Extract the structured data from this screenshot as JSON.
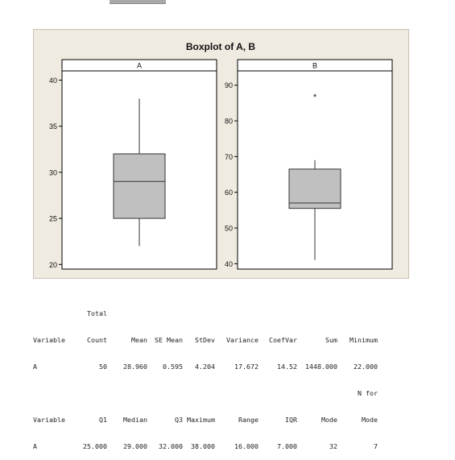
{
  "chart_data": {
    "type": "boxplot",
    "title": "Boxplot of A, B",
    "panels": [
      {
        "name": "A",
        "ylim": [
          19.5,
          41
        ],
        "yticks": [
          20,
          25,
          30,
          35,
          40
        ],
        "whisker_low": 22,
        "q1": 25,
        "median": 29,
        "q3": 32,
        "whisker_high": 38,
        "outliers": []
      },
      {
        "name": "B",
        "ylim": [
          38.5,
          94
        ],
        "yticks": [
          40,
          50,
          60,
          70,
          80,
          90
        ],
        "whisker_low": 41,
        "q1": 55.5,
        "median": 57,
        "q3": 66.5,
        "whisker_high": 69,
        "outliers": [
          87
        ]
      }
    ]
  },
  "stats_table": {
    "row1": {
      "headers_top": [
        "",
        "Total",
        "",
        "",
        "",
        "",
        "",
        "",
        ""
      ],
      "headers": [
        "Variable",
        "Count",
        "Mean",
        "SE Mean",
        "StDev",
        "Variance",
        "CoefVar",
        "Sum",
        "Minimum"
      ],
      "values": [
        "A",
        "50",
        "28.960",
        "0.595",
        "4.204",
        "17.672",
        "14.52",
        "1448.000",
        "22.000"
      ]
    },
    "row2": {
      "headers_top": [
        "",
        "",
        "",
        "",
        "",
        "",
        "",
        "",
        "N for"
      ],
      "headers": [
        "Variable",
        "Q1",
        "Median",
        "Q3",
        "Maximum",
        "Range",
        "IQR",
        "Mode",
        "Mode"
      ],
      "values": [
        "A",
        "25.000",
        "29.000",
        "32.000",
        "38.000",
        "16.000",
        "7.000",
        "32",
        "7"
      ]
    }
  }
}
